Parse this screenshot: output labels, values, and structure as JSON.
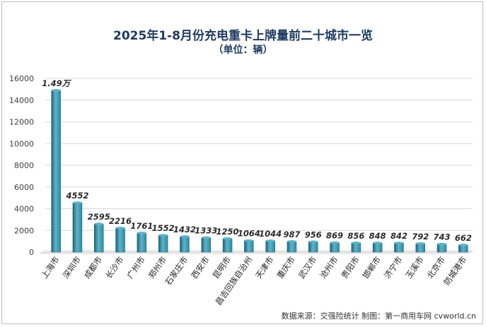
{
  "colors": {
    "bar": "#2b8aa3",
    "bar_dark": "#1d6478",
    "bar_light": "#5fb3c8",
    "grid": "#d9d9d9",
    "title": "#1f3a5f"
  },
  "chart_data": {
    "type": "bar",
    "title": "2025年1-8月份充电重卡上牌量前二十城市一览",
    "subtitle": "（单位：辆）",
    "categories": [
      "上海市",
      "深圳市",
      "成都市",
      "长沙市",
      "广州市",
      "郑州市",
      "石家庄市",
      "西安市",
      "昆明市",
      "昌吉回族自治州",
      "天津市",
      "重庆市",
      "武汉市",
      "沧州市",
      "贵阳市",
      "邯郸市",
      "济宁市",
      "玉溪市",
      "北京市",
      "防城港市"
    ],
    "values": [
      14900,
      4552,
      2595,
      2216,
      1761,
      1552,
      1432,
      1333,
      1250,
      1064,
      1044,
      987,
      956,
      869,
      856,
      848,
      842,
      792,
      743,
      662
    ],
    "data_labels": [
      "1.49万",
      "4552",
      "2595",
      "2216",
      "1761",
      "1552",
      "1432",
      "1333",
      "1250",
      "1064",
      "1044",
      "987",
      "956",
      "869",
      "856",
      "848",
      "842",
      "792",
      "743",
      "662"
    ],
    "ylim": [
      0,
      16000
    ],
    "yticks": [
      "0",
      "2000",
      "4000",
      "6000",
      "8000",
      "10000",
      "12000",
      "14000",
      "16000"
    ],
    "grid": true,
    "legend": "none"
  },
  "source_note": "数据来源：交强险统计    制图：第一商用车网 cvworld.cn"
}
